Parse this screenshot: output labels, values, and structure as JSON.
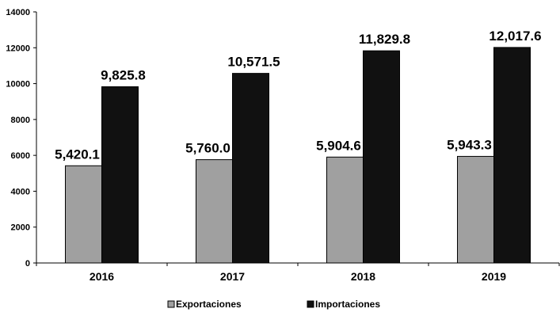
{
  "chart_data": {
    "type": "bar",
    "categories": [
      "2016",
      "2017",
      "2018",
      "2019"
    ],
    "series": [
      {
        "name": "Exportaciones",
        "values": [
          5420.1,
          5760.0,
          5904.6,
          5943.3
        ],
        "labels": [
          "5,420.1",
          "5,760.0",
          "5,904.6",
          "5,943.3"
        ],
        "color": "#a0a0a0"
      },
      {
        "name": "Importaciones",
        "values": [
          9825.8,
          10571.5,
          11829.8,
          12017.6
        ],
        "labels": [
          "9,825.8",
          "10,571.5",
          "11,829.8",
          "12,017.6"
        ],
        "color": "#111111"
      }
    ],
    "yticks": [
      "0",
      "2000",
      "4000",
      "6000",
      "8000",
      "10000",
      "12000",
      "14000"
    ],
    "ylim": [
      0,
      14000
    ],
    "title": "",
    "xlabel": "",
    "ylabel": "",
    "grid": false,
    "legend_position": "bottom"
  }
}
